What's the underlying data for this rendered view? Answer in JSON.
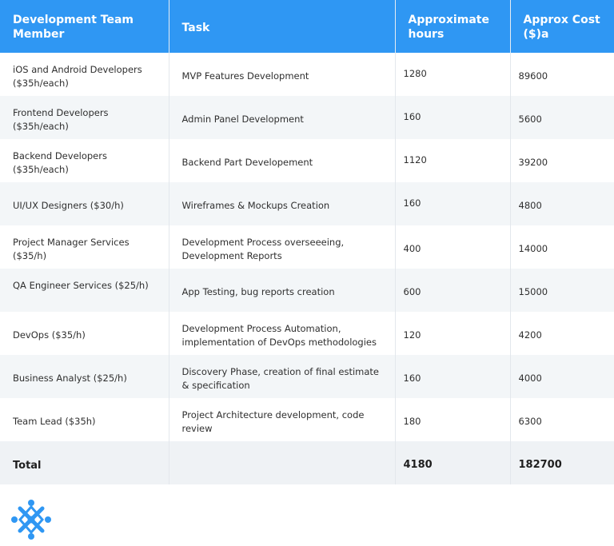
{
  "table": {
    "headers": {
      "member": "Development Team Member",
      "task": "Task",
      "hours": "Approximate hours",
      "cost": "Approx Cost ($)a"
    },
    "rows": [
      {
        "member": "iOS and Android Developers ($35h/each)",
        "task": "MVP Features Development",
        "hours": "1280",
        "cost": "89600"
      },
      {
        "member": "Frontend Developers ($35h/each)",
        "task": "Admin Panel Development",
        "hours": "160",
        "cost": "5600"
      },
      {
        "member": "Backend Developers ($35h/each)",
        "task": "Backend Part Developement",
        "hours": "1120",
        "cost": "39200"
      },
      {
        "member": "UI/UX Designers ($30/h)",
        "task": "Wireframes & Mockups Creation",
        "hours": "160",
        "cost": "4800"
      },
      {
        "member": "Project Manager Services ($35/h)",
        "task": "Development Process overseeeing, Development Reports",
        "hours": "400",
        "cost": "14000"
      },
      {
        "member": "QA Engineer Services ($25/h)",
        "task": "App Testing, bug reports creation",
        "hours": "600",
        "cost": "15000"
      },
      {
        "member": "DevOps ($35/h)",
        "task": "Development Process Automation, implementation of DevOps methodologies",
        "hours": "120",
        "cost": "4200"
      },
      {
        "member": "Business Analyst ($25/h)",
        "task": "Discovery Phase, creation of final estimate & specification",
        "hours": "160",
        "cost": "4000"
      },
      {
        "member": "Team Lead ($35h)",
        "task": "Project Architecture development, code review",
        "hours": "180",
        "cost": "6300"
      }
    ],
    "total": {
      "label": "Total",
      "task": "",
      "hours": "4180",
      "cost": "182700"
    }
  },
  "logo": {
    "icon": "star-cross-logo-icon",
    "color": "#2f97f3"
  },
  "colors": {
    "header_bg": "#2f97f3",
    "stripe_bg": "#f3f6f8",
    "total_bg": "#eff2f5"
  }
}
